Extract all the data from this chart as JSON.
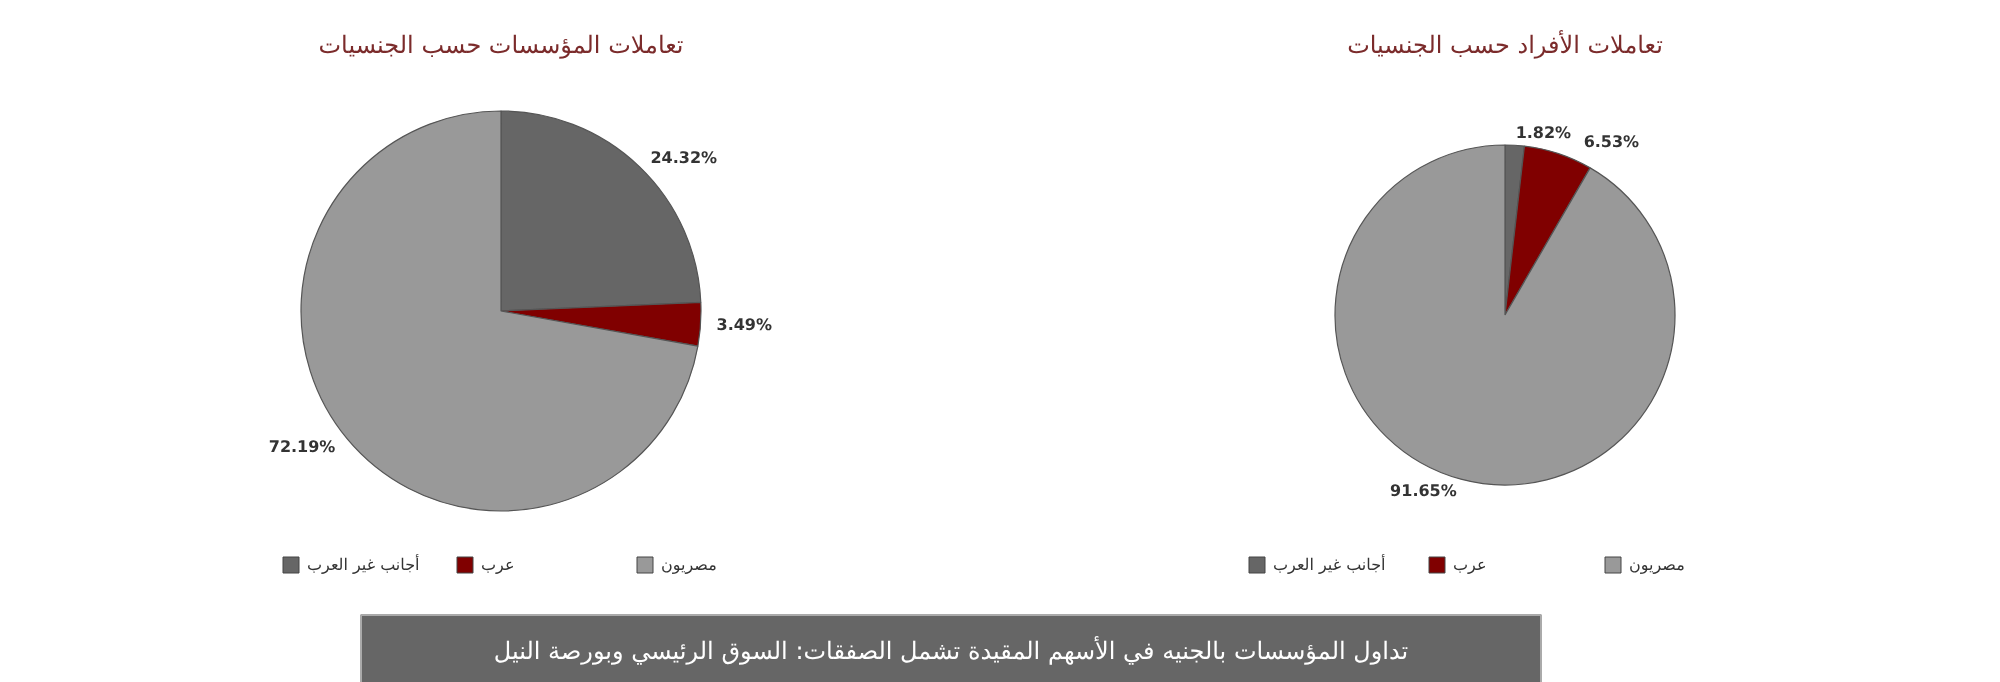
{
  "chart_data": [
    {
      "type": "pie",
      "title": "تعاملات المؤسسات حسب الجنسيات",
      "categories": [
        "أجانب غير العرب",
        "عرب",
        "مصريون"
      ],
      "values": [
        24.32,
        3.49,
        72.19
      ],
      "value_labels": [
        "24.32%",
        "3.49%",
        "72.19%"
      ],
      "colors": [
        "#666666",
        "#800000",
        "#999999"
      ],
      "legend": "bottom"
    },
    {
      "type": "pie",
      "title": "تعاملات الأفراد حسب الجنسيات",
      "categories": [
        "أجانب غير العرب",
        "عرب",
        "مصريون"
      ],
      "values": [
        1.82,
        6.53,
        91.65
      ],
      "value_labels": [
        "1.82%",
        "6.53%",
        "91.65%"
      ],
      "colors": [
        "#666666",
        "#800000",
        "#999999"
      ],
      "legend": "bottom"
    },
    {
      "type": "other",
      "title": "تداول المؤسسات بالجنيه في الأسهم المقيدة تشمل الصفقات: السوق الرئيسي وبورصة النيل"
    }
  ]
}
